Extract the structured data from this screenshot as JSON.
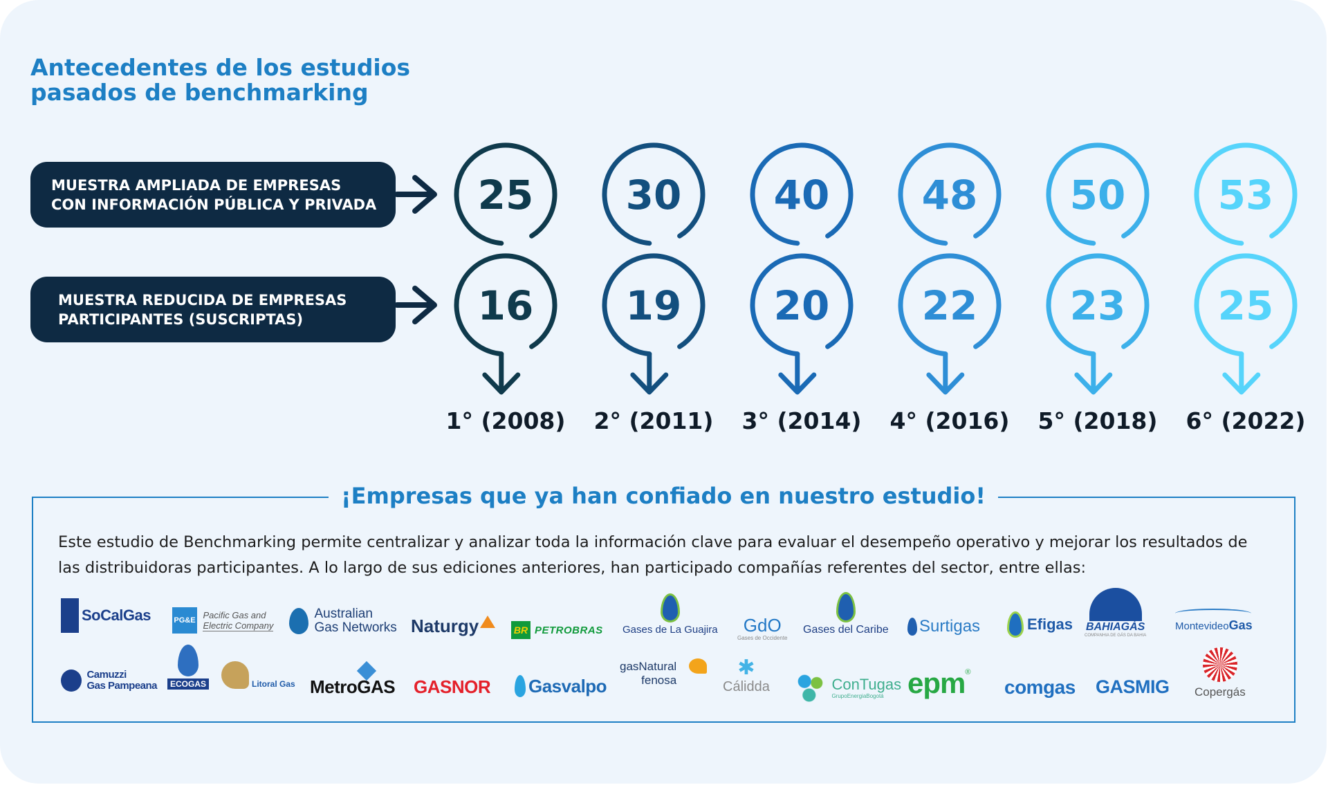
{
  "title_lines": [
    "Antecedentes de los estudios",
    "pasados de benchmarking"
  ],
  "rows": [
    {
      "label_lines": [
        "MUESTRA AMPLIADA DE EMPRESAS",
        "CON INFORMACIÓN PÚBLICA Y PRIVADA"
      ],
      "values": [
        "25",
        "30",
        "40",
        "48",
        "50",
        "53"
      ]
    },
    {
      "label_lines": [
        "MUESTRA REDUCIDA DE EMPRESAS",
        "PARTICIPANTES (SUSCRIPTAS)"
      ],
      "values": [
        "16",
        "19",
        "20",
        "22",
        "23",
        "25"
      ]
    }
  ],
  "editions": [
    "1° (2008)",
    "2° (2011)",
    "3° (2014)",
    "4° (2016)",
    "5° (2018)",
    "6° (2022)"
  ],
  "colors": [
    "#0f3a4c",
    "#134f7e",
    "#1a6ab5",
    "#2e8ed6",
    "#3cb0ea",
    "#56d4fb"
  ],
  "section_title": "¡Empresas que ya han confiado en nuestro estudio!",
  "body_text": "Este estudio de Benchmarking permite centralizar y analizar toda la información clave para evaluar el desempeño operativo y mejorar los resultados de las distribuidoras participantes. A lo largo de sus ediciones anteriores, han participado compañías referentes del sector, entre ellas:",
  "logos": {
    "socalgas": "SoCalGas",
    "pge_mark": "PG&E",
    "pge_name_1": "Pacific Gas and",
    "pge_name_2": "Electric Company",
    "agn_1": "Australian",
    "agn_2": "Gas Networks",
    "naturgy": "Naturgy",
    "br_mark": "BR",
    "petrobras": "PETROBRAS",
    "guajira": "Gases de La Guajira",
    "gdo": "GdO",
    "gdo_sub": "Gases de Occidente",
    "caribe": "Gases del Caribe",
    "surtigas": "Surtigas",
    "efigas": "Efigas",
    "bahiagas": "BAHIAGÁS",
    "bahiagas_sub": "COMPANHIA DE GÁS DA BAHIA",
    "montevideo_1": "Montevideo",
    "montevideo_2": "Gas",
    "camuzzi_1": "Camuzzi",
    "camuzzi_2": "Gas Pampeana",
    "ecogas": "ECOGAS",
    "litoral": "Litoral Gas",
    "metrogas": "MetroGAS",
    "gasnor": "GASNOR",
    "gasvalpo": "Gasvalpo",
    "gasnatural_1": "gasNatural",
    "gasnatural_2": "fenosa",
    "calidda": "Cálidda",
    "contugas": "ConTugas",
    "contugas_sub": "GrupoEnergiaBogotá",
    "epm": "epm",
    "comgas": "comgas",
    "gasmig": "GASMIG",
    "copergas": "Copergás"
  }
}
